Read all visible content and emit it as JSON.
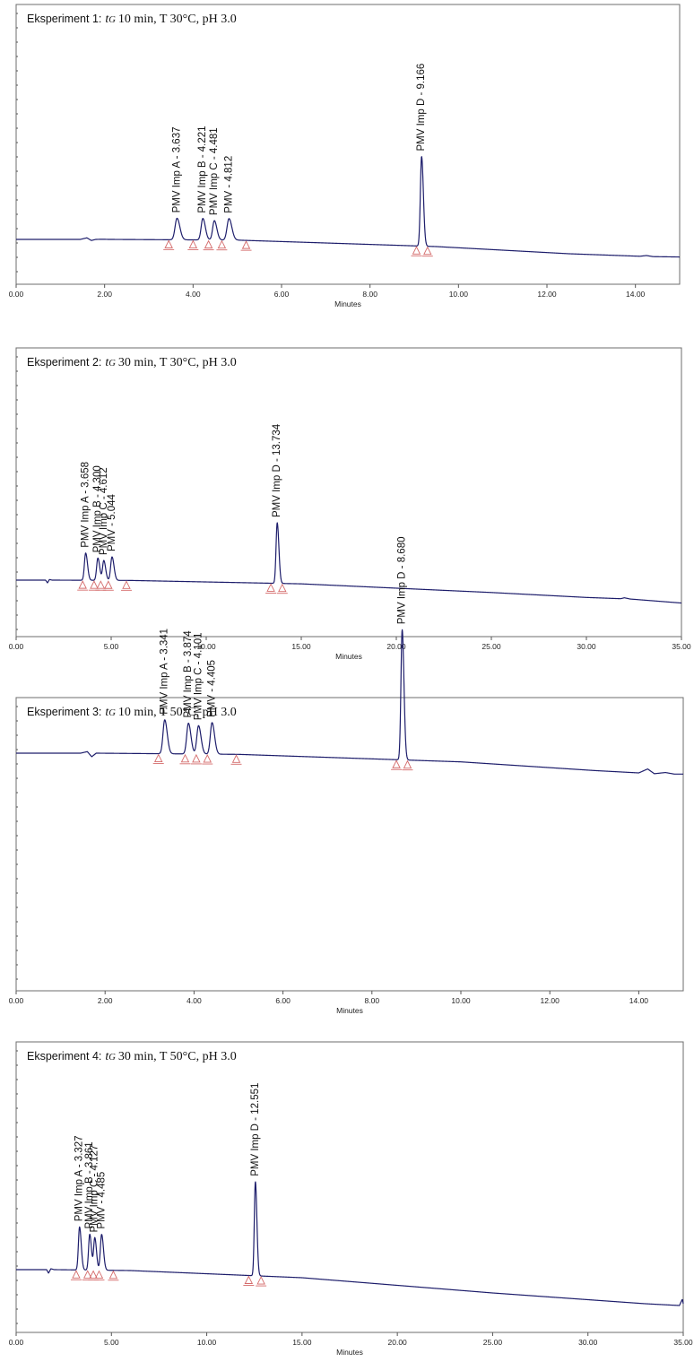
{
  "colors": {
    "trace": "#1d1d6b",
    "marker": "#d46a6a",
    "axis": "#6d6d6d"
  },
  "chart_data": [
    {
      "type": "line",
      "title": {
        "prefix": "Eksperiment 1:",
        "tg": "t",
        "tg_sub": "G",
        "rest": "10 min, T 30°C, pH 3.0"
      },
      "xlabel": "Minutes",
      "xlim": [
        0,
        15
      ],
      "xticks": [
        {
          "v": 0,
          "label": "0.00"
        },
        {
          "v": 2,
          "label": "2.00"
        },
        {
          "v": 4,
          "label": "4.00"
        },
        {
          "v": 6,
          "label": "6.00"
        },
        {
          "v": 8,
          "label": "8.00"
        },
        {
          "v": 10,
          "label": "10.00"
        },
        {
          "v": 12,
          "label": "12.00"
        },
        {
          "v": 14,
          "label": "14.00"
        }
      ],
      "baseline": [
        [
          0,
          0.0
        ],
        [
          1.45,
          0.0
        ],
        [
          1.6,
          0.022
        ],
        [
          1.7,
          -0.015
        ],
        [
          1.8,
          0.0
        ],
        [
          1.95,
          0.002
        ],
        [
          2.1,
          0.0
        ],
        [
          5.0,
          -0.01
        ],
        [
          9.5,
          -0.1
        ],
        [
          12.5,
          -0.2
        ],
        [
          14.1,
          -0.235
        ],
        [
          14.25,
          -0.225
        ],
        [
          14.4,
          -0.24
        ],
        [
          15.0,
          -0.245
        ]
      ],
      "peaks": [
        {
          "rt": 3.637,
          "height": 0.3,
          "width": 0.08,
          "label": "PMV Imp A - 3.637"
        },
        {
          "rt": 4.221,
          "height": 0.3,
          "width": 0.07,
          "label": "PMV Imp B - 4.221"
        },
        {
          "rt": 4.481,
          "height": 0.27,
          "width": 0.07,
          "label": "PMV Imp C - 4.481"
        },
        {
          "rt": 4.812,
          "height": 0.3,
          "width": 0.08,
          "label": "PMV - 4.812"
        },
        {
          "rt": 9.166,
          "height": 1.25,
          "width": 0.05,
          "label": "PMV Imp D - 9.166"
        }
      ],
      "markers": [
        3.45,
        4.0,
        4.35,
        4.65,
        5.2,
        9.05,
        9.3
      ]
    },
    {
      "type": "line",
      "title": {
        "prefix": "Eksperiment 2:",
        "tg": "t",
        "tg_sub": "G",
        "rest": "30 min, T 30°C, pH 3.0"
      },
      "xlabel": "Minutes",
      "xlim": [
        0,
        35
      ],
      "xticks": [
        {
          "v": 0,
          "label": "0.00"
        },
        {
          "v": 5,
          "label": "5.00"
        },
        {
          "v": 10,
          "label": "10.00"
        },
        {
          "v": 15,
          "label": "15.00"
        },
        {
          "v": 20,
          "label": "20.00"
        },
        {
          "v": 25,
          "label": "25.00"
        },
        {
          "v": 30,
          "label": "30.00"
        },
        {
          "v": 35,
          "label": "35.00"
        }
      ],
      "baseline": [
        [
          0,
          0.0
        ],
        [
          1.55,
          0.0
        ],
        [
          1.65,
          -0.045
        ],
        [
          1.75,
          0.01
        ],
        [
          1.9,
          0.0
        ],
        [
          6.0,
          -0.005
        ],
        [
          15.0,
          -0.06
        ],
        [
          25.0,
          -0.2
        ],
        [
          30.0,
          -0.28
        ],
        [
          31.8,
          -0.3
        ],
        [
          32.0,
          -0.285
        ],
        [
          32.3,
          -0.305
        ],
        [
          35.0,
          -0.37
        ]
      ],
      "peaks": [
        {
          "rt": 3.658,
          "height": 0.44,
          "width": 0.12,
          "label": "PMV Imp A - 3.658"
        },
        {
          "rt": 4.3,
          "height": 0.36,
          "width": 0.12,
          "label": "PMV Imp B - 4.300"
        },
        {
          "rt": 4.612,
          "height": 0.32,
          "width": 0.12,
          "label": "PMV Imp C - 4.612"
        },
        {
          "rt": 5.044,
          "height": 0.38,
          "width": 0.13,
          "label": "PMV - 5.044"
        }
      ],
      "peaks2": [
        {
          "rt": 13.734,
          "height": 0.98,
          "width": 0.11,
          "label": "PMV Imp D - 13.734"
        }
      ],
      "markers": [
        3.5,
        4.1,
        4.45,
        4.85,
        5.8,
        13.4,
        14.0
      ]
    },
    {
      "type": "line",
      "title": {
        "prefix": "Eksperiment 3:",
        "tg": "t",
        "tg_sub": "G",
        "rest": "10 min, T 50°C, pH 3.0"
      },
      "xlabel": "Minutes",
      "xlim": [
        0,
        15
      ],
      "xticks": [
        {
          "v": 0,
          "label": "0.00"
        },
        {
          "v": 2,
          "label": "2.00"
        },
        {
          "v": 4,
          "label": "4.00"
        },
        {
          "v": 6,
          "label": "6.00"
        },
        {
          "v": 8,
          "label": "8.00"
        },
        {
          "v": 10,
          "label": "10.00"
        },
        {
          "v": 12,
          "label": "12.00"
        },
        {
          "v": 14,
          "label": "14.00"
        }
      ],
      "baseline": [
        [
          0,
          0.0
        ],
        [
          1.45,
          0.0
        ],
        [
          1.6,
          0.02
        ],
        [
          1.7,
          -0.045
        ],
        [
          1.8,
          0.0
        ],
        [
          5.0,
          -0.015
        ],
        [
          10.0,
          -0.11
        ],
        [
          13.0,
          -0.22
        ],
        [
          14.0,
          -0.25
        ],
        [
          14.2,
          -0.2
        ],
        [
          14.35,
          -0.26
        ],
        [
          14.6,
          -0.245
        ],
        [
          14.8,
          -0.265
        ],
        [
          15.0,
          -0.265
        ]
      ],
      "peaks": [
        {
          "rt": 3.341,
          "height": 0.43,
          "width": 0.07,
          "label": "PMV Imp A - 3.341"
        },
        {
          "rt": 3.874,
          "height": 0.39,
          "width": 0.07,
          "label": "PMV Imp B - 3.874"
        },
        {
          "rt": 4.101,
          "height": 0.36,
          "width": 0.07,
          "label": "PMV Imp C - 4.101"
        },
        {
          "rt": 4.405,
          "height": 0.4,
          "width": 0.07,
          "label": "PMV - 4.405"
        }
      ],
      "peaks2": [
        {
          "rt": 8.68,
          "height": 1.65,
          "width": 0.05,
          "label": "PMV Imp D - 8.680"
        }
      ],
      "markers": [
        3.2,
        3.8,
        4.05,
        4.3,
        4.95,
        8.55,
        8.8
      ]
    },
    {
      "type": "line",
      "title": {
        "prefix": "Eksperiment 4:",
        "tg": "t",
        "tg_sub": "G",
        "rest": "30 min, T 50°C, pH 3.0"
      },
      "xlabel": "Minutes",
      "xlim": [
        0,
        35
      ],
      "xticks": [
        {
          "v": 0,
          "label": "0.00"
        },
        {
          "v": 5,
          "label": "5.00"
        },
        {
          "v": 10,
          "label": "10.00"
        },
        {
          "v": 15,
          "label": "15.00"
        },
        {
          "v": 20,
          "label": "20.00"
        },
        {
          "v": 25,
          "label": "25.00"
        },
        {
          "v": 30,
          "label": "30.00"
        },
        {
          "v": 35,
          "label": "35.00"
        }
      ],
      "baseline": [
        [
          0,
          0.0
        ],
        [
          1.6,
          0.0
        ],
        [
          1.7,
          -0.04
        ],
        [
          1.82,
          0.01
        ],
        [
          2.0,
          0.0
        ],
        [
          6.0,
          -0.01
        ],
        [
          15.0,
          -0.09
        ],
        [
          25.0,
          -0.26
        ],
        [
          33.0,
          -0.38
        ],
        [
          34.8,
          -0.4
        ],
        [
          34.95,
          -0.33
        ],
        [
          35.0,
          -0.38
        ]
      ],
      "peaks": [
        {
          "rt": 3.327,
          "height": 0.48,
          "width": 0.11,
          "label": "PMV Imp A - 3.327"
        },
        {
          "rt": 3.861,
          "height": 0.4,
          "width": 0.11,
          "label": "PMV Imp B - 3.861"
        },
        {
          "rt": 4.127,
          "height": 0.36,
          "width": 0.11,
          "label": "PMV Imp C - 4.127"
        },
        {
          "rt": 4.485,
          "height": 0.4,
          "width": 0.12,
          "label": "PMV - 4.485"
        }
      ],
      "peaks2": [
        {
          "rt": 12.551,
          "height": 1.05,
          "width": 0.1,
          "label": "PMV Imp D - 12.551"
        }
      ],
      "markers": [
        3.15,
        3.75,
        4.05,
        4.35,
        5.1,
        12.2,
        12.85
      ]
    }
  ]
}
